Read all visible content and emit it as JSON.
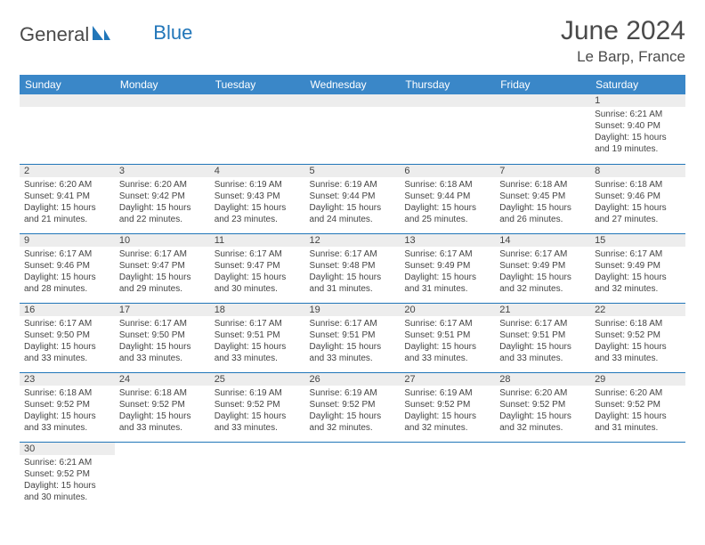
{
  "logo": {
    "text1": "General",
    "text2": "Blue"
  },
  "header": {
    "title": "June 2024",
    "location": "Le Barp, France"
  },
  "colors": {
    "header_bg": "#3a87c8",
    "accent": "#2176b9",
    "stripe": "#ededed"
  },
  "weekdays": [
    "Sunday",
    "Monday",
    "Tuesday",
    "Wednesday",
    "Thursday",
    "Friday",
    "Saturday"
  ],
  "weeks": [
    [
      null,
      null,
      null,
      null,
      null,
      null,
      {
        "n": "1",
        "sunrise": "6:21 AM",
        "sunset": "9:40 PM",
        "dh": "15",
        "dm": "19"
      }
    ],
    [
      {
        "n": "2",
        "sunrise": "6:20 AM",
        "sunset": "9:41 PM",
        "dh": "15",
        "dm": "21"
      },
      {
        "n": "3",
        "sunrise": "6:20 AM",
        "sunset": "9:42 PM",
        "dh": "15",
        "dm": "22"
      },
      {
        "n": "4",
        "sunrise": "6:19 AM",
        "sunset": "9:43 PM",
        "dh": "15",
        "dm": "23"
      },
      {
        "n": "5",
        "sunrise": "6:19 AM",
        "sunset": "9:44 PM",
        "dh": "15",
        "dm": "24"
      },
      {
        "n": "6",
        "sunrise": "6:18 AM",
        "sunset": "9:44 PM",
        "dh": "15",
        "dm": "25"
      },
      {
        "n": "7",
        "sunrise": "6:18 AM",
        "sunset": "9:45 PM",
        "dh": "15",
        "dm": "26"
      },
      {
        "n": "8",
        "sunrise": "6:18 AM",
        "sunset": "9:46 PM",
        "dh": "15",
        "dm": "27"
      }
    ],
    [
      {
        "n": "9",
        "sunrise": "6:17 AM",
        "sunset": "9:46 PM",
        "dh": "15",
        "dm": "28"
      },
      {
        "n": "10",
        "sunrise": "6:17 AM",
        "sunset": "9:47 PM",
        "dh": "15",
        "dm": "29"
      },
      {
        "n": "11",
        "sunrise": "6:17 AM",
        "sunset": "9:47 PM",
        "dh": "15",
        "dm": "30"
      },
      {
        "n": "12",
        "sunrise": "6:17 AM",
        "sunset": "9:48 PM",
        "dh": "15",
        "dm": "31"
      },
      {
        "n": "13",
        "sunrise": "6:17 AM",
        "sunset": "9:49 PM",
        "dh": "15",
        "dm": "31"
      },
      {
        "n": "14",
        "sunrise": "6:17 AM",
        "sunset": "9:49 PM",
        "dh": "15",
        "dm": "32"
      },
      {
        "n": "15",
        "sunrise": "6:17 AM",
        "sunset": "9:49 PM",
        "dh": "15",
        "dm": "32"
      }
    ],
    [
      {
        "n": "16",
        "sunrise": "6:17 AM",
        "sunset": "9:50 PM",
        "dh": "15",
        "dm": "33"
      },
      {
        "n": "17",
        "sunrise": "6:17 AM",
        "sunset": "9:50 PM",
        "dh": "15",
        "dm": "33"
      },
      {
        "n": "18",
        "sunrise": "6:17 AM",
        "sunset": "9:51 PM",
        "dh": "15",
        "dm": "33"
      },
      {
        "n": "19",
        "sunrise": "6:17 AM",
        "sunset": "9:51 PM",
        "dh": "15",
        "dm": "33"
      },
      {
        "n": "20",
        "sunrise": "6:17 AM",
        "sunset": "9:51 PM",
        "dh": "15",
        "dm": "33"
      },
      {
        "n": "21",
        "sunrise": "6:17 AM",
        "sunset": "9:51 PM",
        "dh": "15",
        "dm": "33"
      },
      {
        "n": "22",
        "sunrise": "6:18 AM",
        "sunset": "9:52 PM",
        "dh": "15",
        "dm": "33"
      }
    ],
    [
      {
        "n": "23",
        "sunrise": "6:18 AM",
        "sunset": "9:52 PM",
        "dh": "15",
        "dm": "33"
      },
      {
        "n": "24",
        "sunrise": "6:18 AM",
        "sunset": "9:52 PM",
        "dh": "15",
        "dm": "33"
      },
      {
        "n": "25",
        "sunrise": "6:19 AM",
        "sunset": "9:52 PM",
        "dh": "15",
        "dm": "33"
      },
      {
        "n": "26",
        "sunrise": "6:19 AM",
        "sunset": "9:52 PM",
        "dh": "15",
        "dm": "32"
      },
      {
        "n": "27",
        "sunrise": "6:19 AM",
        "sunset": "9:52 PM",
        "dh": "15",
        "dm": "32"
      },
      {
        "n": "28",
        "sunrise": "6:20 AM",
        "sunset": "9:52 PM",
        "dh": "15",
        "dm": "32"
      },
      {
        "n": "29",
        "sunrise": "6:20 AM",
        "sunset": "9:52 PM",
        "dh": "15",
        "dm": "31"
      }
    ],
    [
      {
        "n": "30",
        "sunrise": "6:21 AM",
        "sunset": "9:52 PM",
        "dh": "15",
        "dm": "30"
      },
      null,
      null,
      null,
      null,
      null,
      null
    ]
  ],
  "labels": {
    "sunrise": "Sunrise:",
    "sunset": "Sunset:",
    "daylight_prefix": "Daylight:",
    "hours_word": "hours",
    "and_word": "and",
    "minutes_word": "minutes."
  }
}
